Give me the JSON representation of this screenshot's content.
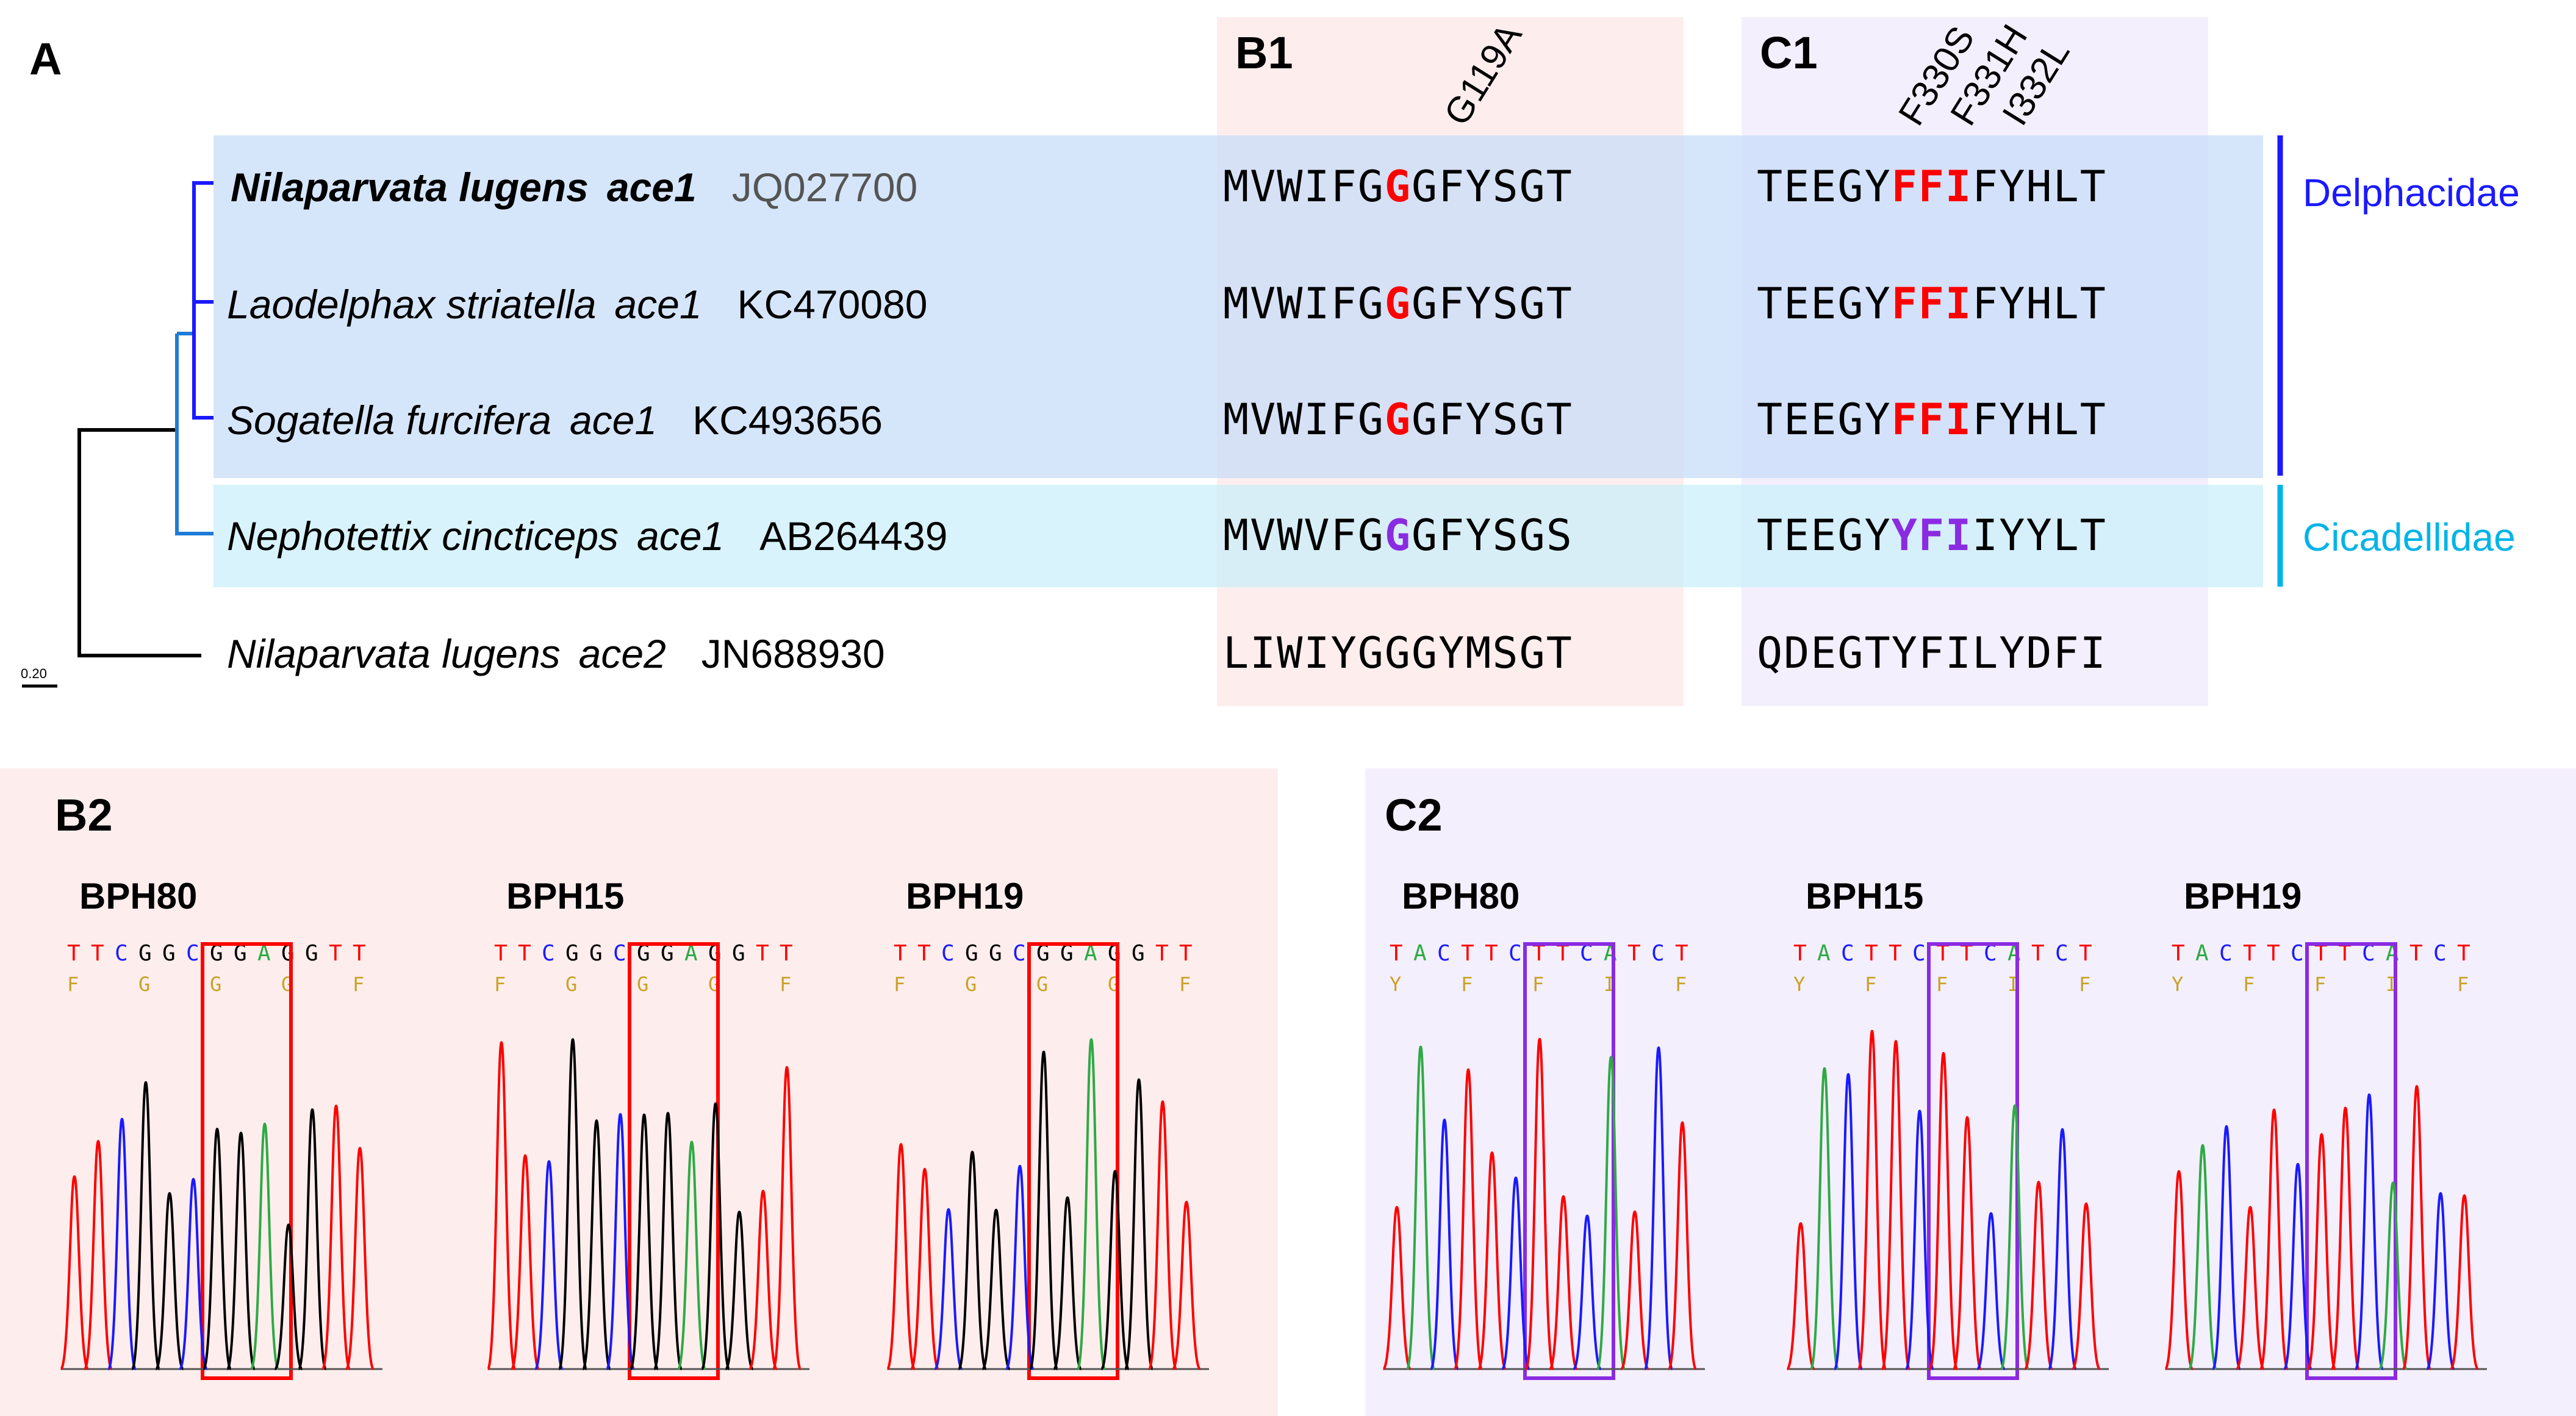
{
  "panels": {
    "A": "A",
    "B1": "B1",
    "C1": "C1",
    "B2": "B2",
    "C2": "C2"
  },
  "scale_bar": "0.20",
  "mutations_b1": [
    "G119A"
  ],
  "mutations_c1": [
    "F330S",
    "F331H",
    "I332L"
  ],
  "families": [
    {
      "name": "Delphacidae",
      "color": "#1a1aff"
    },
    {
      "name": "Cicadellidae",
      "color": "#00b4e6"
    }
  ],
  "rows": [
    {
      "species": "Nilaparvata lugens",
      "gene": "ace1",
      "accession": "JQ027700",
      "highlight": true,
      "b1": [
        "MVWIFG",
        "G",
        "GFYSGT"
      ],
      "b1_color": "#ff0000",
      "c1": [
        "TEEGY",
        "FFI",
        "FYHLT"
      ],
      "c1_color": "#ff0000"
    },
    {
      "species": "Laodelphax striatella",
      "gene": "ace1",
      "accession": "KC470080",
      "highlight": false,
      "b1": [
        "MVWIFG",
        "G",
        "GFYSGT"
      ],
      "b1_color": "#ff0000",
      "c1": [
        "TEEGY",
        "FFI",
        "FYHLT"
      ],
      "c1_color": "#ff0000"
    },
    {
      "species": "Sogatella furcifera",
      "gene": "ace1",
      "accession": "KC493656",
      "highlight": false,
      "b1": [
        "MVWIFG",
        "G",
        "GFYSGT"
      ],
      "b1_color": "#ff0000",
      "c1": [
        "TEEGY",
        "FFI",
        "FYHLT"
      ],
      "c1_color": "#ff0000"
    },
    {
      "species": "Nephotettix cincticeps",
      "gene": "ace1",
      "accession": "AB264439",
      "highlight": false,
      "b1": [
        "MVWVFG",
        "G",
        "GFYSGS"
      ],
      "b1_color": "#8a2be2",
      "c1": [
        "TEEGY",
        "YFI",
        "IYYLT"
      ],
      "c1_color": "#8a2be2"
    },
    {
      "species": "Nilaparvata lugens",
      "gene": "ace2",
      "accession": "JN688930",
      "highlight": false,
      "b1": [
        "LIWIYGGGYMSGT",
        "",
        ""
      ],
      "b1_color": "#000000",
      "c1": [
        "QDEGTYFILYDFI",
        "",
        ""
      ],
      "c1_color": "#000000"
    }
  ],
  "chromatograms_b2": [
    {
      "sample": "BPH80",
      "bases": "TTCGGCGGAGGTT",
      "aa": [
        "F",
        "G",
        "G",
        "G",
        "F"
      ]
    },
    {
      "sample": "BPH15",
      "bases": "TTCGGCGGAGGTT",
      "aa": [
        "F",
        "G",
        "G",
        "G",
        "F"
      ]
    },
    {
      "sample": "BPH19",
      "bases": "TTCGGCGGAGGTT",
      "aa": [
        "F",
        "G",
        "G",
        "G",
        "F"
      ]
    }
  ],
  "chromatograms_c2": [
    {
      "sample": "BPH80",
      "bases": "TACTTCTTCATCT",
      "aa": [
        "Y",
        "F",
        "F",
        "I",
        "F"
      ]
    },
    {
      "sample": "BPH15",
      "bases": "TACTTCTTCATCT",
      "aa": [
        "Y",
        "F",
        "F",
        "I",
        "F"
      ]
    },
    {
      "sample": "BPH19",
      "bases": "TACTTCTTCATCT",
      "aa": [
        "Y",
        "F",
        "F",
        "I",
        "F"
      ]
    }
  ],
  "colors": {
    "b_bg": "#fdeeed",
    "c_bg": "#f4effd",
    "delphacidae_band": "#d6e6fb",
    "cicadellidae_band": "#ddf4fb",
    "base_A": "#2eaa44",
    "base_C": "#1a1aff",
    "base_G": "#000000",
    "base_T": "#ff0000",
    "b_box": "#ff0000",
    "c_box": "#8a2be2"
  }
}
